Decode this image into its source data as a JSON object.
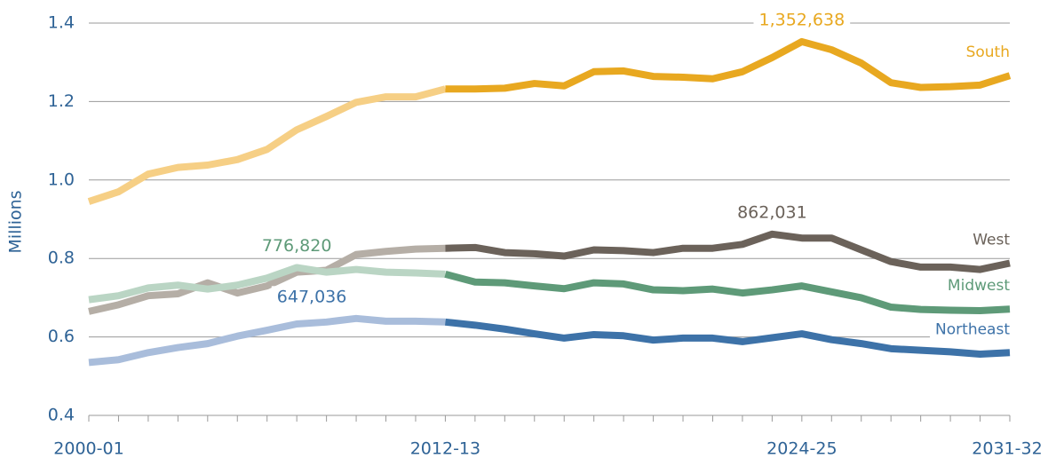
{
  "chart_data": {
    "type": "line",
    "y_label": "Millions",
    "categories": [
      "2000-01",
      null,
      null,
      null,
      null,
      null,
      null,
      null,
      null,
      null,
      null,
      null,
      "2012-13",
      null,
      null,
      null,
      null,
      null,
      null,
      null,
      null,
      null,
      null,
      null,
      "2024-25",
      null,
      null,
      null,
      null,
      null,
      null,
      "2031-32"
    ],
    "projection_from": "2012-13",
    "ylim": [
      0.4,
      1.4
    ],
    "yticks": [
      0.4,
      0.6,
      0.8,
      {
        "value": 1,
        "label": "1.0"
      },
      1.2,
      1.4
    ],
    "grid": true,
    "series": [
      {
        "name": "South",
        "color": "#e8a820",
        "history_color": "#f6cf85",
        "values": [
          0.945,
          0.97,
          1.015,
          1.032,
          1.038,
          1.052,
          1.078,
          1.128,
          1.162,
          1.198,
          1.212,
          1.212,
          1.232,
          1.232,
          1.234,
          1.246,
          1.24,
          1.276,
          1.278,
          1.264,
          1.262,
          1.258,
          1.276,
          1.312,
          1.352638,
          1.332,
          1.298,
          1.248,
          1.236,
          1.238,
          1.242,
          1.266
        ],
        "value_labels": [
          null,
          null,
          null,
          null,
          null,
          null,
          null,
          null,
          null,
          null,
          null,
          null,
          null,
          null,
          null,
          null,
          null,
          null,
          null,
          null,
          null,
          null,
          null,
          null,
          "1,352,638",
          null,
          null,
          null,
          null,
          null,
          null,
          null
        ]
      },
      {
        "name": "West",
        "color": "#6b625a",
        "history_color": "#b5aea6",
        "values": [
          0.665,
          0.682,
          0.705,
          0.71,
          0.738,
          0.712,
          0.73,
          0.765,
          0.77,
          0.81,
          0.818,
          0.824,
          0.826,
          0.828,
          0.815,
          0.812,
          0.806,
          0.822,
          0.82,
          0.815,
          0.826,
          0.826,
          0.836,
          0.862031,
          0.852,
          0.852,
          0.822,
          0.792,
          0.778,
          0.778,
          0.772,
          0.788
        ],
        "value_labels": [
          null,
          null,
          null,
          null,
          null,
          null,
          null,
          null,
          null,
          null,
          null,
          null,
          null,
          null,
          null,
          null,
          null,
          null,
          null,
          null,
          null,
          null,
          null,
          "862,031",
          null,
          null,
          null,
          null,
          null,
          null,
          null,
          null
        ]
      },
      {
        "name": "Midwest",
        "color": "#5e9a78",
        "history_color": "#bad5c4",
        "values": [
          0.695,
          0.705,
          0.725,
          0.732,
          0.722,
          0.732,
          0.75,
          0.77682,
          0.765,
          0.772,
          0.765,
          0.763,
          0.76,
          0.74,
          0.738,
          0.73,
          0.723,
          0.738,
          0.735,
          0.72,
          0.718,
          0.722,
          0.712,
          0.72,
          0.73,
          0.715,
          0.7,
          0.676,
          0.67,
          0.668,
          0.667,
          0.671
        ],
        "value_labels": [
          null,
          null,
          null,
          null,
          null,
          null,
          null,
          "776,820",
          null,
          null,
          null,
          null,
          null,
          null,
          null,
          null,
          null,
          null,
          null,
          null,
          null,
          null,
          null,
          null,
          null,
          null,
          null,
          null,
          null,
          null,
          null,
          null
        ]
      },
      {
        "name": "Northeast",
        "color": "#3d72a8",
        "history_color": "#a9bddb",
        "values": [
          0.535,
          0.542,
          0.56,
          0.573,
          0.583,
          0.602,
          0.617,
          0.633,
          0.638,
          0.647036,
          0.64,
          0.64,
          0.638,
          0.63,
          0.62,
          0.608,
          0.597,
          0.606,
          0.603,
          0.592,
          0.597,
          0.597,
          0.588,
          0.598,
          0.608,
          0.593,
          0.583,
          0.57,
          0.566,
          0.562,
          0.556,
          0.56
        ],
        "value_labels": [
          null,
          null,
          null,
          null,
          null,
          null,
          null,
          null,
          null,
          "647,036",
          null,
          null,
          null,
          null,
          null,
          null,
          null,
          null,
          null,
          null,
          null,
          null,
          null,
          null,
          null,
          null,
          null,
          null,
          null,
          null,
          null,
          null
        ]
      }
    ]
  }
}
